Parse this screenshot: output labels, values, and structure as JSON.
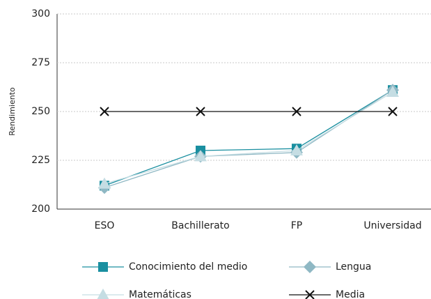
{
  "chart_data": {
    "type": "line",
    "y_label": "Rendimiento",
    "categories": [
      "ESO",
      "Bachillerato",
      "FP",
      "Universidad"
    ],
    "series": [
      {
        "name": "Conocimiento del medio",
        "color": "#1a8fa0",
        "marker": "square",
        "values": [
          212,
          230,
          231,
          261
        ]
      },
      {
        "name": "Lengua",
        "color": "#8fb8c4",
        "marker": "diamond",
        "values": [
          211,
          227,
          229,
          261
        ]
      },
      {
        "name": "Matemáticas",
        "color": "#c5dde3",
        "marker": "triangle",
        "values": [
          213,
          227,
          230,
          260
        ]
      },
      {
        "name": "Media",
        "color": "#111111",
        "marker": "x",
        "values": [
          250,
          250,
          250,
          250
        ]
      }
    ],
    "ylim": [
      200,
      300
    ],
    "yticks": [
      200,
      225,
      250,
      275,
      300
    ],
    "grid": true
  }
}
